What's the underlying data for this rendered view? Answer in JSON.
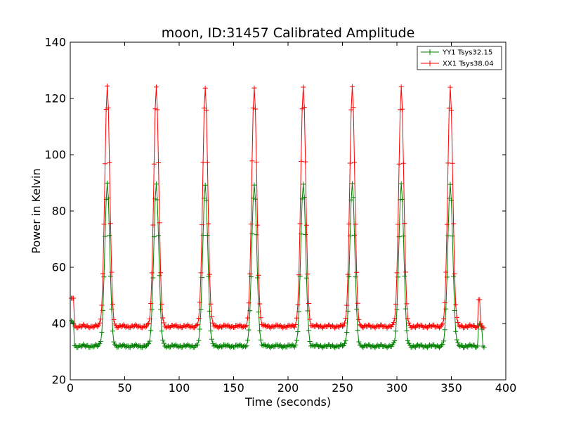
{
  "chart_data": {
    "type": "line",
    "title": "moon, ID:31457 Calibrated Amplitude",
    "xlabel": "Time (seconds)",
    "ylabel": "Power in Kelvin",
    "xlim": [
      0,
      400
    ],
    "ylim": [
      20,
      140
    ],
    "xticks": [
      "0",
      "50",
      "100",
      "150",
      "200",
      "250",
      "300",
      "350",
      "400"
    ],
    "yticks": [
      "20",
      "40",
      "60",
      "80",
      "100",
      "120",
      "140"
    ],
    "grid": false,
    "legend_position": "top-right",
    "marker": "plus",
    "peak_times": [
      34,
      79,
      124,
      169,
      214,
      259,
      304,
      349
    ],
    "series": [
      {
        "name": "YY1 Tsys32.15",
        "color": "#008000",
        "start": {
          "x": [
            1,
            2,
            3
          ],
          "y": [
            41,
            40.5,
            40
          ]
        },
        "baseline": 32,
        "peak": 89.5,
        "end": {
          "x": [
            374,
            375,
            376,
            377,
            378,
            379,
            380
          ],
          "y": [
            32,
            39,
            40,
            39.5,
            38,
            32,
            31.5
          ]
        }
      },
      {
        "name": "XX1 Tsys38.04",
        "color": "#ff0000",
        "start": {
          "x": [
            1,
            2,
            3
          ],
          "y": [
            49,
            49,
            49
          ]
        },
        "baseline": 39,
        "peak": 124,
        "end": {
          "x": [
            374,
            375,
            376,
            377,
            378,
            379,
            380
          ],
          "y": [
            39,
            48.5,
            48.5,
            40,
            39,
            38.5,
            38.5
          ]
        }
      }
    ]
  }
}
